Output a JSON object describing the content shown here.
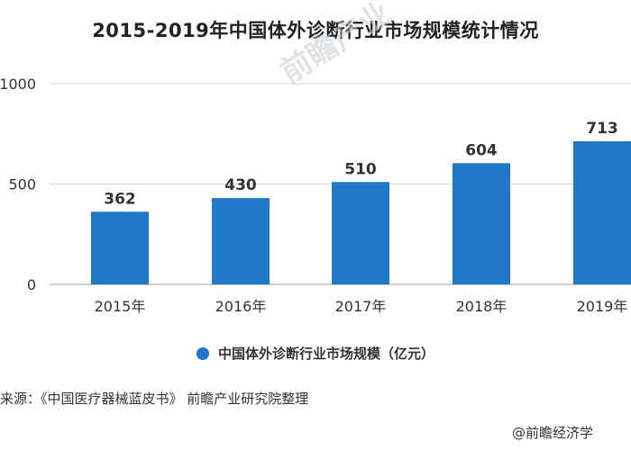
{
  "chart_data": {
    "type": "bar",
    "title": "2015-2019年中国体外诊断行业市场规模统计情况",
    "categories": [
      "2015年",
      "2016年",
      "2017年",
      "2018年",
      "2019年"
    ],
    "series": [
      {
        "name": "中国体外诊断行业市场规模（亿元）",
        "values": [
          362,
          430,
          510,
          604,
          713
        ]
      }
    ],
    "y_ticks": [
      "0",
      "500",
      "1000"
    ],
    "ylim": [
      0,
      1000
    ],
    "grid": true,
    "legend_position": "bottom",
    "bar_color": "#1f78c8"
  },
  "source": "来源：《中国医疗器械蓝皮书》 前瞻产业研究院整理",
  "watermark": "前瞻产业",
  "footer_brand": "@前瞻经济学"
}
